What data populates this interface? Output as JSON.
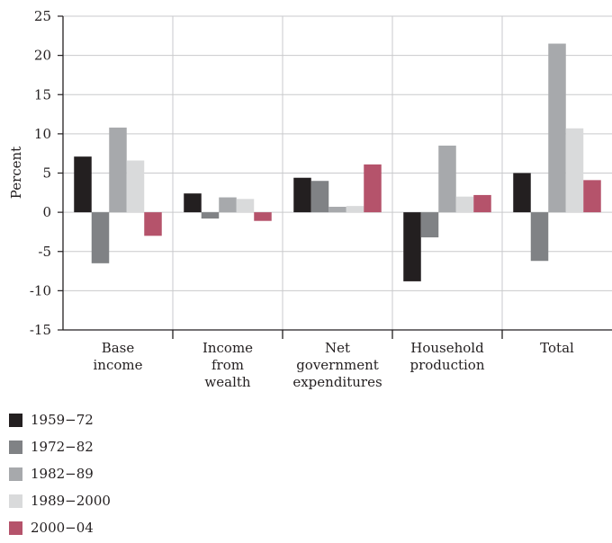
{
  "chart_data": {
    "type": "bar",
    "title": "",
    "xlabel": "",
    "ylabel": "Percent",
    "ylim": [
      -15,
      25
    ],
    "yticks": [
      25,
      20,
      15,
      10,
      5,
      0,
      -5,
      -10,
      -15
    ],
    "ytick_labels": [
      "25",
      "20",
      "15",
      "10",
      "5",
      "0",
      "-5",
      "-10",
      "-15"
    ],
    "grid": true,
    "legend_position": "bottom-left",
    "categories": [
      [
        "Base",
        "income"
      ],
      [
        "Income",
        "from",
        "wealth"
      ],
      [
        "Net",
        "government",
        "expenditures"
      ],
      [
        "Household",
        "production"
      ],
      [
        "Total"
      ]
    ],
    "series": [
      {
        "name": "1959−72",
        "color": "#231f20",
        "values": [
          7.1,
          2.4,
          4.4,
          -8.8,
          5.0
        ]
      },
      {
        "name": "1972−82",
        "color": "#808285",
        "values": [
          -6.5,
          -0.8,
          4.0,
          -3.2,
          -6.2
        ]
      },
      {
        "name": "1982−89",
        "color": "#a7a9ac",
        "values": [
          10.8,
          1.9,
          0.7,
          8.5,
          21.5
        ]
      },
      {
        "name": "1989−2000",
        "color": "#d9dadb",
        "values": [
          6.6,
          1.7,
          0.8,
          2.0,
          10.7
        ]
      },
      {
        "name": "2000−04",
        "color": "#b5536b",
        "values": [
          -3.0,
          -1.1,
          6.1,
          2.2,
          4.1
        ]
      }
    ]
  }
}
